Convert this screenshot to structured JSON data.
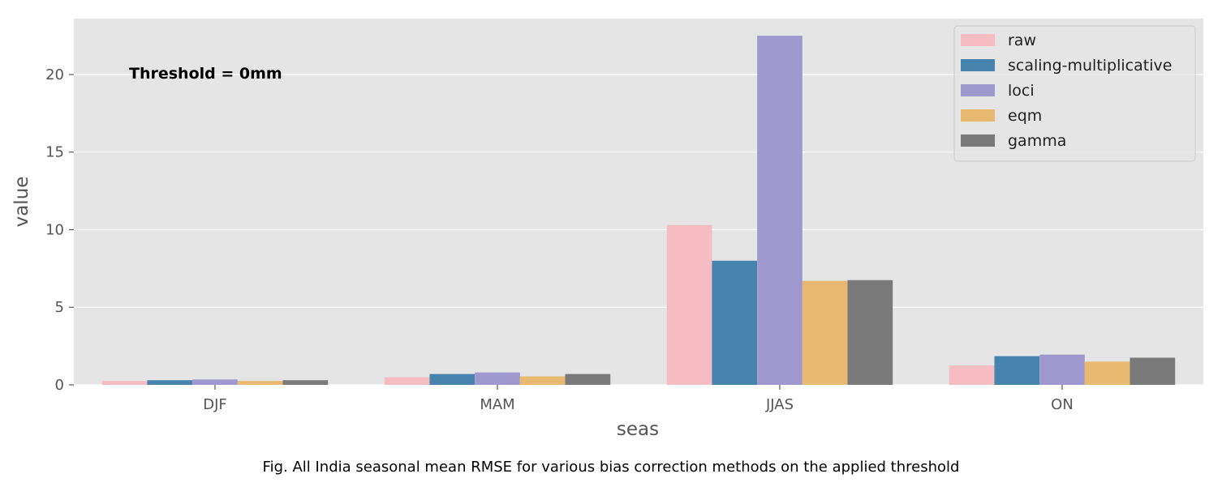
{
  "chart_data": {
    "type": "bar",
    "categories": [
      "DJF",
      "MAM",
      "JJAS",
      "ON"
    ],
    "series": [
      {
        "name": "raw",
        "color": "#f5bcc2",
        "values": [
          0.25,
          0.5,
          10.3,
          1.25
        ]
      },
      {
        "name": "scaling-multiplicative",
        "color": "#4684ad",
        "values": [
          0.3,
          0.7,
          8.0,
          1.85
        ]
      },
      {
        "name": "loci",
        "color": "#9f99cd",
        "values": [
          0.35,
          0.8,
          22.5,
          1.95
        ]
      },
      {
        "name": "eqm",
        "color": "#e8b970",
        "values": [
          0.25,
          0.55,
          6.7,
          1.5
        ]
      },
      {
        "name": "gamma",
        "color": "#7a7a7a",
        "values": [
          0.3,
          0.7,
          6.75,
          1.75
        ]
      }
    ],
    "xlabel": "seas",
    "ylabel": "value",
    "ylim": [
      0,
      23.6
    ],
    "yticks": [
      0,
      5,
      10,
      15,
      20
    ],
    "grid": true,
    "legend_position": "top-right",
    "annotation": "Threshold = 0mm",
    "background_color": "#e5e5e5"
  },
  "caption": "Fig. All India seasonal mean RMSE for various bias correction methods on the applied threshold"
}
